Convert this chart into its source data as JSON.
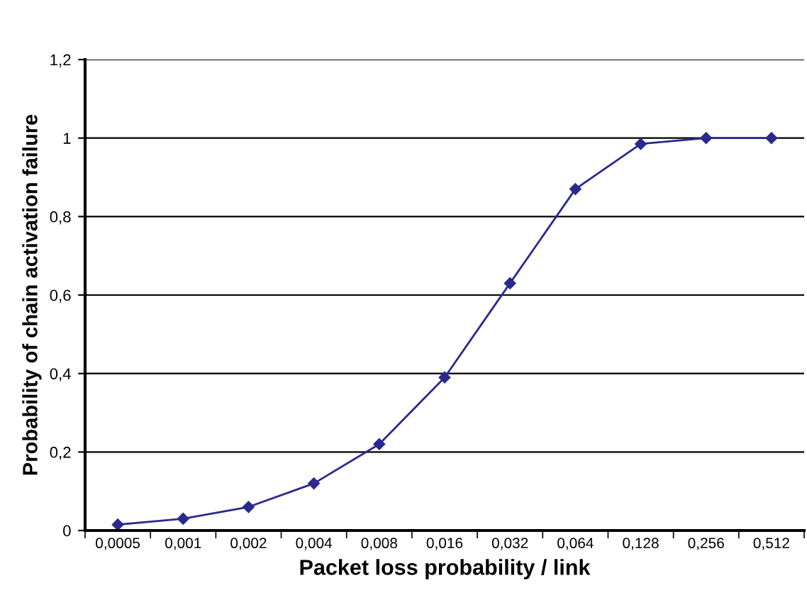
{
  "chart_data": {
    "type": "line",
    "xlabel": "Packet loss probability / link",
    "ylabel": "Probability of chain activation failure",
    "categories": [
      "0,0005",
      "0,001",
      "0,002",
      "0,004",
      "0,008",
      "0,016",
      "0,032",
      "0,064",
      "0,128",
      "0,256",
      "0,512"
    ],
    "series": [
      {
        "color": "#2a2a8c",
        "values": [
          0.015,
          0.03,
          0.06,
          0.12,
          0.22,
          0.39,
          0.63,
          0.87,
          0.985,
          1.0,
          1.0
        ]
      }
    ],
    "ylim": [
      0,
      1.2
    ],
    "yticks": [
      0,
      {
        "value": 0.2,
        "label": "0,2"
      },
      {
        "value": 0.4,
        "label": "0,4"
      },
      {
        "value": 0.6,
        "label": "0,6"
      },
      {
        "value": 0.8,
        "label": "0,8"
      },
      1,
      {
        "value": 1.2,
        "label": "1,2"
      }
    ],
    "grid": "y",
    "marker": "diamond",
    "line_style": "solid"
  }
}
